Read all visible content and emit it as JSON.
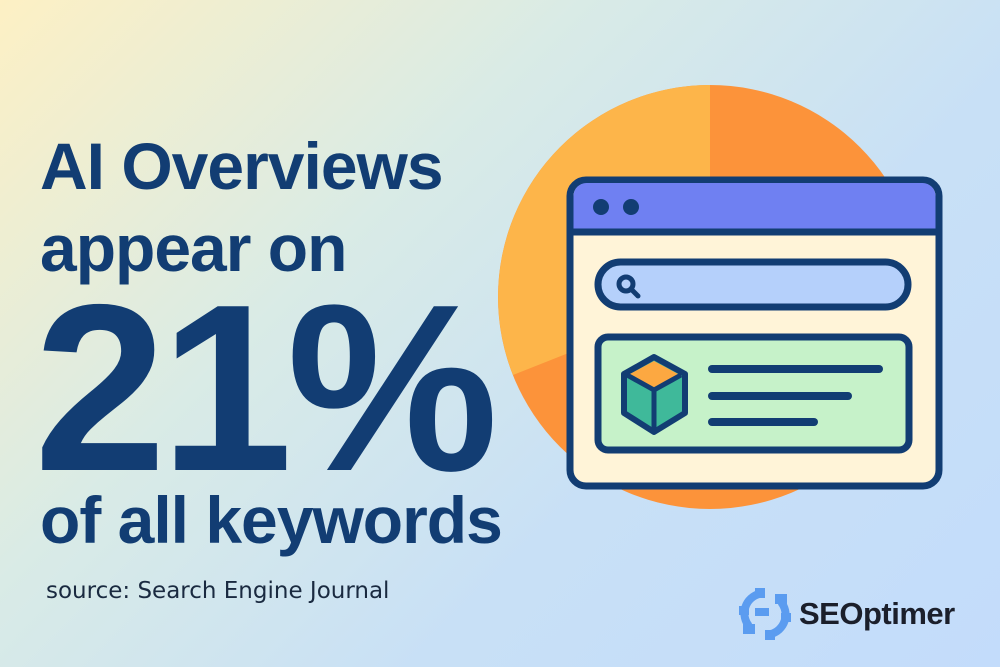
{
  "headline": {
    "line1": "AI Overviews",
    "line2": "appear on",
    "stat": "21%",
    "line4": "of all keywords"
  },
  "source": "source: Search Engine Journal",
  "brand": {
    "name": "SEOptimer",
    "icon": "gear-sync-icon",
    "color": "#5b9cf0"
  },
  "colors": {
    "text": "#123d73",
    "pie_light": "#fdb54a",
    "pie_dark": "#fc933a",
    "window_titlebar": "#6f80f2",
    "window_body": "#fff4d8",
    "search_bar": "#b5d0fb",
    "card": "#c6f2c9"
  },
  "illustration": {
    "icons": [
      "pie-chart-icon",
      "browser-window-icon",
      "search-icon",
      "cube-icon"
    ]
  }
}
